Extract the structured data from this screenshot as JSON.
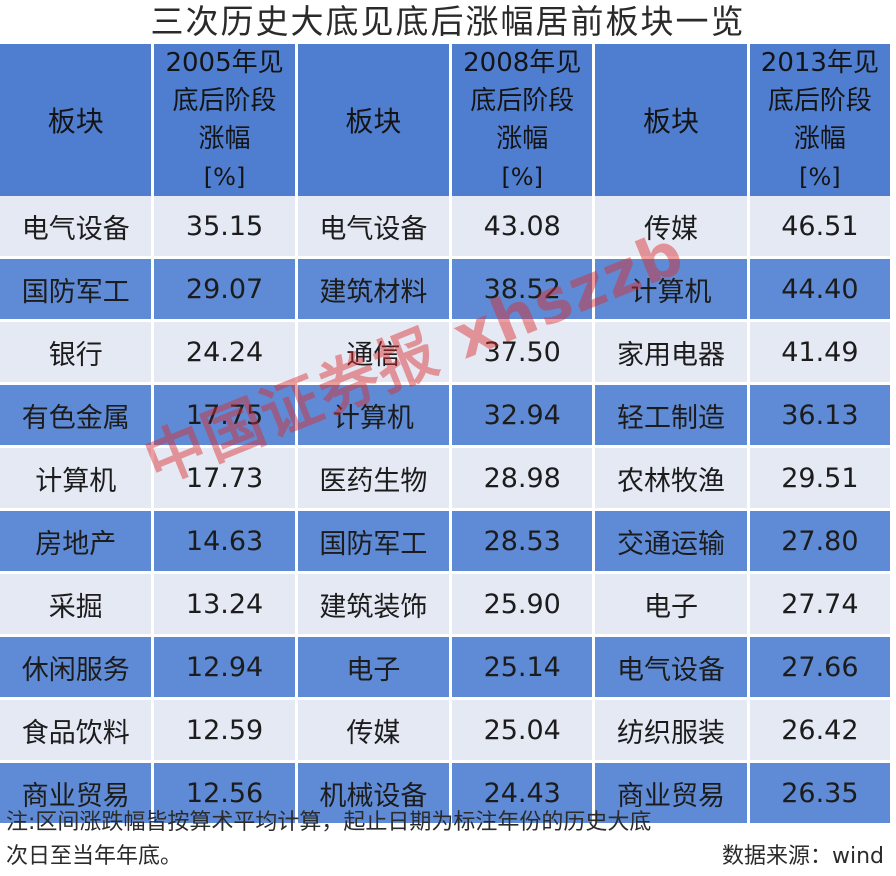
{
  "title": "三次历史大底见底后涨幅居前板块一览",
  "headers": {
    "sector": "板块",
    "y2005": [
      "2005年见",
      "底后阶段",
      "涨幅"
    ],
    "y2008": [
      "2008年见",
      "底后阶段",
      "涨幅"
    ],
    "y2013": [
      "2013年见",
      "底后阶段",
      "涨幅"
    ],
    "unit": "[%]"
  },
  "rows": [
    [
      {
        "s": "电气设备",
        "v": "35.15"
      },
      {
        "s": "电气设备",
        "v": "43.08"
      },
      {
        "s": "传媒",
        "v": "46.51"
      }
    ],
    [
      {
        "s": "国防军工",
        "v": "29.07"
      },
      {
        "s": "建筑材料",
        "v": "38.52"
      },
      {
        "s": "计算机",
        "v": "44.40"
      }
    ],
    [
      {
        "s": "银行",
        "v": "24.24"
      },
      {
        "s": "通信",
        "v": "37.50"
      },
      {
        "s": "家用电器",
        "v": "41.49"
      }
    ],
    [
      {
        "s": "有色金属",
        "v": "17.75"
      },
      {
        "s": "计算机",
        "v": "32.94"
      },
      {
        "s": "轻工制造",
        "v": "36.13"
      }
    ],
    [
      {
        "s": "计算机",
        "v": "17.73"
      },
      {
        "s": "医药生物",
        "v": "28.98"
      },
      {
        "s": "农林牧渔",
        "v": "29.51"
      }
    ],
    [
      {
        "s": "房地产",
        "v": "14.63"
      },
      {
        "s": "国防军工",
        "v": "28.53"
      },
      {
        "s": "交通运输",
        "v": "27.80"
      }
    ],
    [
      {
        "s": "采掘",
        "v": "13.24"
      },
      {
        "s": "建筑装饰",
        "v": "25.90"
      },
      {
        "s": "电子",
        "v": "27.74"
      }
    ],
    [
      {
        "s": "休闲服务",
        "v": "12.94"
      },
      {
        "s": "电子",
        "v": "25.14"
      },
      {
        "s": "电气设备",
        "v": "27.66"
      }
    ],
    [
      {
        "s": "食品饮料",
        "v": "12.59"
      },
      {
        "s": "传媒",
        "v": "25.04"
      },
      {
        "s": "纺织服装",
        "v": "26.42"
      }
    ],
    [
      {
        "s": "商业贸易",
        "v": "12.56"
      },
      {
        "s": "机械设备",
        "v": "24.43"
      },
      {
        "s": "商业贸易",
        "v": "26.35"
      }
    ]
  ],
  "note": {
    "line1": "注:区间涨跌幅皆按算术平均计算，起止日期为标注年份的历史大底",
    "line2": "次日至当年年底。",
    "source": "数据来源：wind"
  },
  "watermark": "中国证券报 xhszzb",
  "colors": {
    "header": "#4f7ed0",
    "row_light": "#e4e9f4",
    "row_dark": "#5f8bd6",
    "watermark": "#dc2828"
  }
}
